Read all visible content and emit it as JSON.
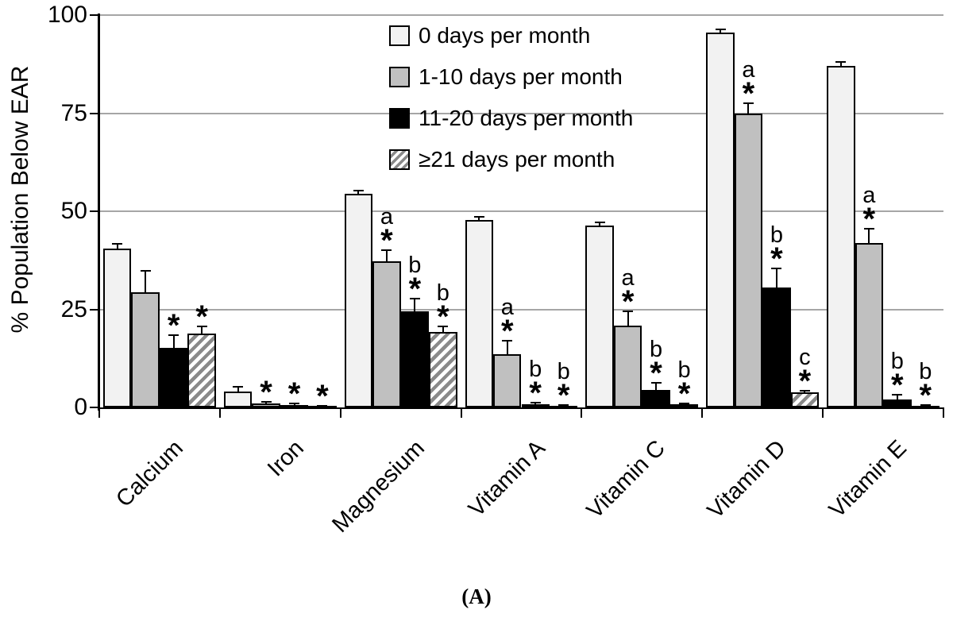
{
  "chart_data": {
    "type": "bar",
    "grouped": true,
    "title": "",
    "ylabel": "% Population Below EAR",
    "caption": "(A)",
    "ylim": [
      0,
      100
    ],
    "yticks": [
      0,
      25,
      50,
      75,
      100
    ],
    "grid": "horizontal",
    "legend_position": "top-center-inside",
    "categories": [
      "Calcium",
      "Iron",
      "Magnesium",
      "Vitamin A",
      "Vitamin C",
      "Vitamin D",
      "Vitamin E"
    ],
    "series": [
      {
        "name": "0 days per month",
        "style": "white",
        "fill": "#f2f2f2",
        "values": [
          40.5,
          4.0,
          54.5,
          47.8,
          46.3,
          95.5,
          87.0
        ],
        "errors": [
          1.2,
          1.2,
          0.8,
          0.8,
          0.8,
          0.8,
          1.0
        ],
        "annotations": [
          "",
          "",
          "",
          "",
          "",
          "",
          ""
        ]
      },
      {
        "name": "1-10 days per month",
        "style": "gray",
        "fill": "#c0c0c0",
        "values": [
          29.3,
          1.0,
          37.3,
          13.5,
          20.8,
          74.8,
          42.0
        ],
        "errors": [
          5.5,
          0.4,
          2.8,
          3.5,
          3.6,
          2.8,
          3.5
        ],
        "annotations": [
          "",
          "*",
          "a*",
          "a*",
          "a*",
          "a*",
          "a*"
        ]
      },
      {
        "name": "11-20 days per month",
        "style": "black",
        "fill": "#000000",
        "values": [
          15.2,
          0.7,
          24.5,
          0.8,
          4.5,
          30.5,
          2.0
        ],
        "errors": [
          3.3,
          0.3,
          3.3,
          0.5,
          1.8,
          5.0,
          1.2
        ],
        "annotations": [
          "*",
          "*",
          "b*",
          "b*",
          "b*",
          "b*",
          "b*"
        ]
      },
      {
        "name": "≥21 days per month",
        "style": "hatched",
        "fill": "hatch",
        "values": [
          18.8,
          0.3,
          19.2,
          0.5,
          0.8,
          3.8,
          0.5
        ],
        "errors": [
          1.8,
          0.2,
          1.5,
          0.2,
          0.3,
          0.5,
          0.2
        ],
        "annotations": [
          "*",
          "*",
          "b*",
          "b*",
          "b*",
          "c*",
          "b*"
        ]
      }
    ],
    "colors": {
      "gridline": "#a6a6a6",
      "axis": "#000000",
      "hatch_stripe": "#8a8a8a",
      "white_bar_fill": "#f2f2f2",
      "gray_bar_fill": "#c0c0c0",
      "black_bar_fill": "#000000"
    }
  }
}
